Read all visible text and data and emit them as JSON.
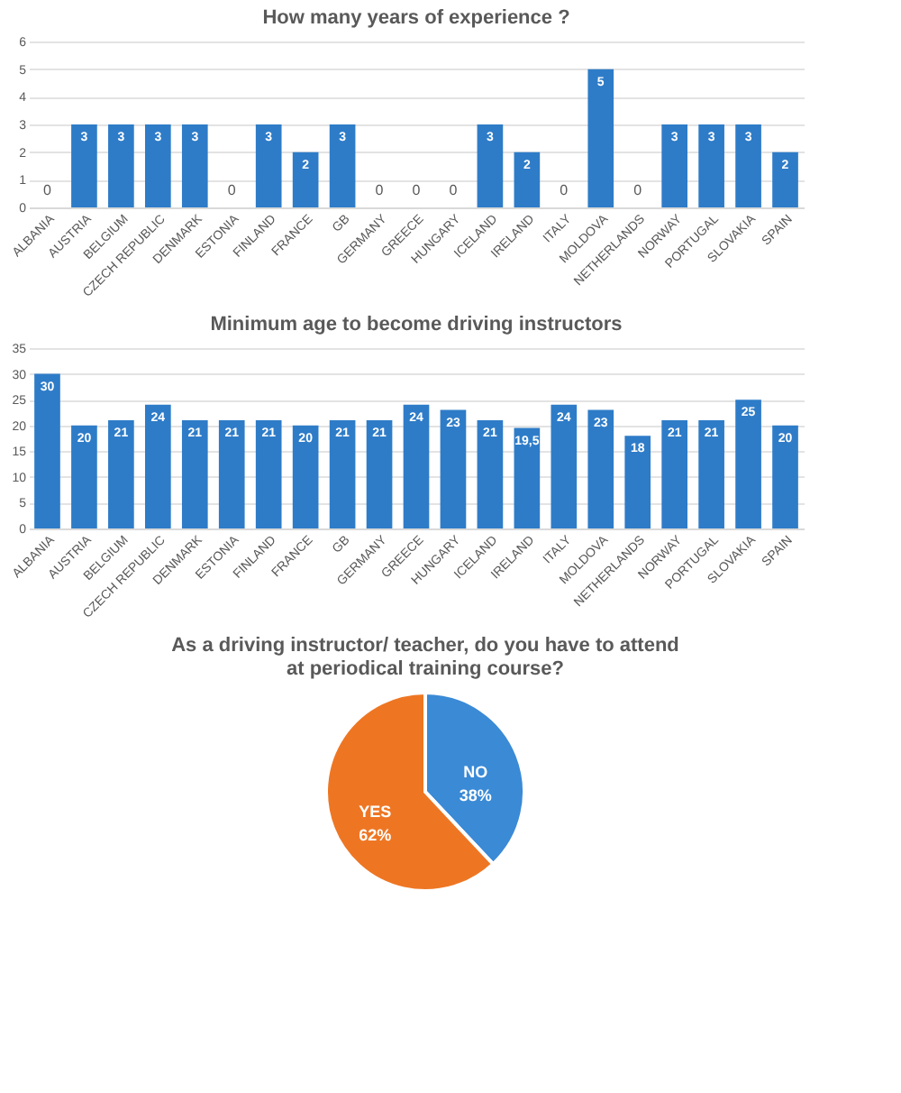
{
  "chart_data": [
    {
      "type": "bar",
      "title": "How many years of experience ?",
      "categories": [
        "ALBANIA",
        "AUSTRIA",
        "BELGIUM",
        "CZECH REPUBLIC",
        "DENMARK",
        "ESTONIA",
        "FINLAND",
        "FRANCE",
        "GB",
        "GERMANY",
        "GREECE",
        "HUNGARY",
        "ICELAND",
        "IRELAND",
        "ITALY",
        "MOLDOVA",
        "NETHERLANDS",
        "NORWAY",
        "PORTUGAL",
        "SLOVAKIA",
        "SPAIN"
      ],
      "values": [
        0,
        3,
        3,
        3,
        3,
        0,
        3,
        2,
        3,
        0,
        0,
        0,
        3,
        2,
        0,
        5,
        0,
        3,
        3,
        3,
        2
      ],
      "color": "#2e7cc8",
      "ylim": [
        0,
        6
      ],
      "yticks": [
        0,
        1,
        2,
        3,
        4,
        5,
        6
      ],
      "grid": "y",
      "data_labels": true
    },
    {
      "type": "bar",
      "title": "Minimum age to become driving instructors",
      "categories": [
        "ALBANIA",
        "AUSTRIA",
        "BELGIUM",
        "CZECH REPUBLIC",
        "DENMARK",
        "ESTONIA",
        "FINLAND",
        "FRANCE",
        "GB",
        "GERMANY",
        "GREECE",
        "HUNGARY",
        "ICELAND",
        "IRELAND",
        "ITALY",
        "MOLDOVA",
        "NETHERLANDS",
        "NORWAY",
        "PORTUGAL",
        "SLOVAKIA",
        "SPAIN"
      ],
      "values": [
        30,
        20,
        21,
        24,
        21,
        21,
        21,
        20,
        21,
        21,
        24,
        23,
        21,
        19.5,
        24,
        23,
        18,
        21,
        21,
        25,
        20
      ],
      "value_labels": [
        "30",
        "20",
        "21",
        "24",
        "21",
        "21",
        "21",
        "20",
        "21",
        "21",
        "24",
        "23",
        "21",
        "19,5",
        "24",
        "23",
        "18",
        "21",
        "21",
        "25",
        "20"
      ],
      "color": "#2e7cc8",
      "ylim": [
        0,
        35
      ],
      "yticks": [
        0,
        5,
        10,
        15,
        20,
        25,
        30,
        35
      ],
      "grid": "y"
    },
    {
      "type": "pie",
      "title": "As  a driving instructor/ teacher, do you have to attend at periodical training course?",
      "categories": [
        "NO",
        "YES"
      ],
      "values": [
        38,
        62
      ],
      "colors": [
        "#3a8ad6",
        "#ee7623"
      ],
      "value_labels": [
        "38%",
        "62%"
      ],
      "legend": false
    }
  ]
}
